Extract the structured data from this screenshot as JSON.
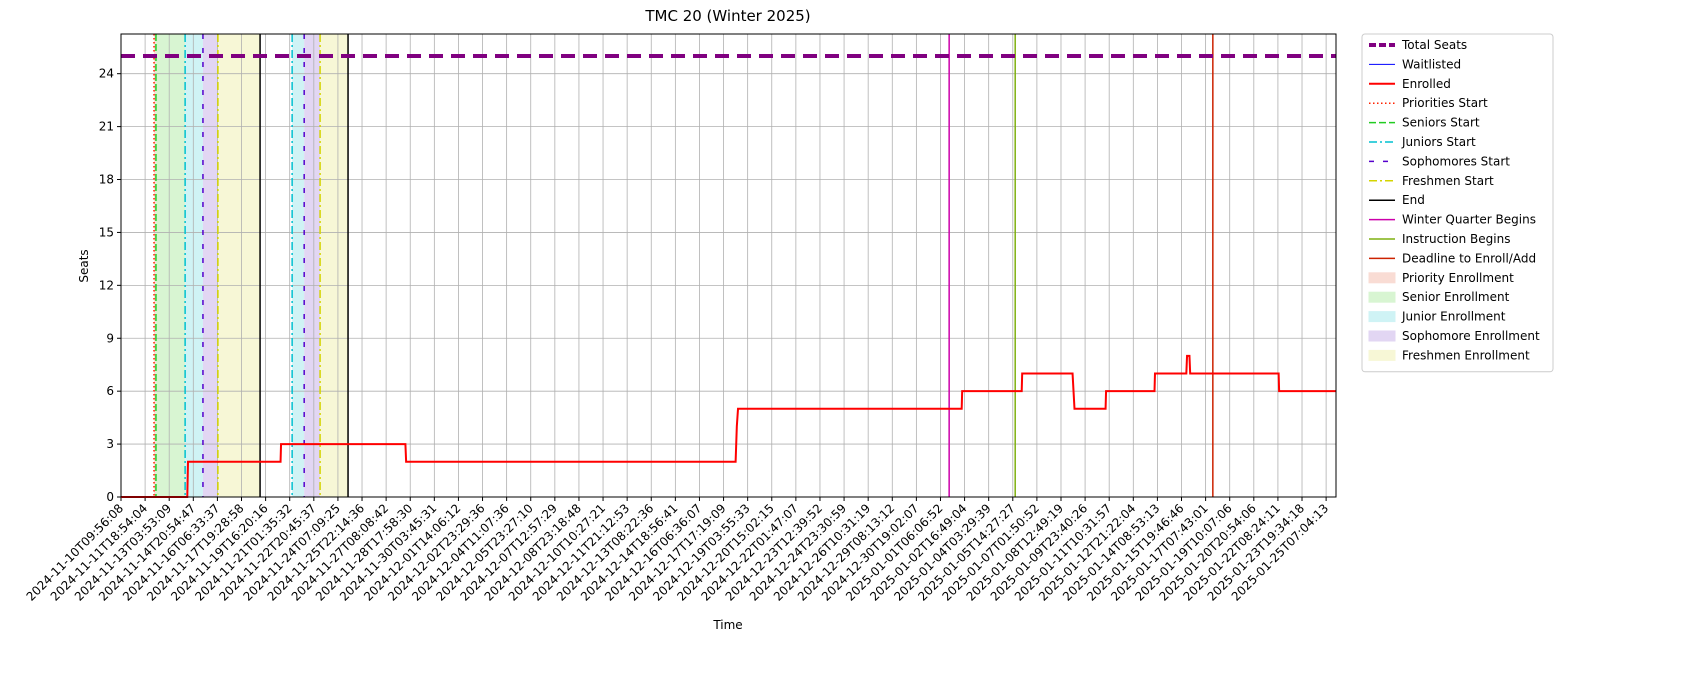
{
  "chart_data": {
    "type": "line",
    "title": "TMC 20 (Winter 2025)",
    "xlabel": "Time",
    "ylabel": "Seats",
    "grid": true,
    "legend": "outside upper right",
    "xlim": [
      0,
      50.41
    ],
    "ylim": [
      0,
      26.25
    ],
    "yticks": [
      0,
      3,
      6,
      9,
      12,
      15,
      18,
      21,
      24
    ],
    "xticks": [
      {
        "value": 0,
        "label": "2024-11-10T09:56:08"
      },
      {
        "value": 1,
        "label": "2024-11-11T18:54:04"
      },
      {
        "value": 2,
        "label": "2024-11-13T03:53:09"
      },
      {
        "value": 3,
        "label": "2024-11-14T20:54:47"
      },
      {
        "value": 4,
        "label": "2024-11-16T06:33:37"
      },
      {
        "value": 5,
        "label": "2024-11-17T19:28:58"
      },
      {
        "value": 6,
        "label": "2024-11-19T16:20:16"
      },
      {
        "value": 7,
        "label": "2024-11-21T01:35:32"
      },
      {
        "value": 8,
        "label": "2024-11-22T20:45:37"
      },
      {
        "value": 9,
        "label": "2024-11-24T07:09:25"
      },
      {
        "value": 10,
        "label": "2024-11-25T22:14:36"
      },
      {
        "value": 11,
        "label": "2024-11-27T08:08:42"
      },
      {
        "value": 12,
        "label": "2024-11-28T17:58:30"
      },
      {
        "value": 13,
        "label": "2024-11-30T03:45:31"
      },
      {
        "value": 14,
        "label": "2024-12-01T14:06:12"
      },
      {
        "value": 15,
        "label": "2024-12-02T23:29:36"
      },
      {
        "value": 16,
        "label": "2024-12-04T11:07:36"
      },
      {
        "value": 17,
        "label": "2024-12-05T23:27:10"
      },
      {
        "value": 18,
        "label": "2024-12-07T12:57:29"
      },
      {
        "value": 19,
        "label": "2024-12-08T23:18:48"
      },
      {
        "value": 20,
        "label": "2024-12-10T10:27:21"
      },
      {
        "value": 21,
        "label": "2024-12-11T21:12:53"
      },
      {
        "value": 22,
        "label": "2024-12-13T08:22:36"
      },
      {
        "value": 23,
        "label": "2024-12-14T18:56:41"
      },
      {
        "value": 24,
        "label": "2024-12-16T06:36:07"
      },
      {
        "value": 25,
        "label": "2024-12-17T17:19:09"
      },
      {
        "value": 26,
        "label": "2024-12-19T03:55:33"
      },
      {
        "value": 27,
        "label": "2024-12-20T15:02:15"
      },
      {
        "value": 28,
        "label": "2024-12-22T01:47:07"
      },
      {
        "value": 29,
        "label": "2024-12-23T12:39:52"
      },
      {
        "value": 30,
        "label": "2024-12-24T23:30:59"
      },
      {
        "value": 31,
        "label": "2024-12-26T10:31:19"
      },
      {
        "value": 32,
        "label": "2024-12-29T08:13:12"
      },
      {
        "value": 33,
        "label": "2024-12-30T19:02:07"
      },
      {
        "value": 34,
        "label": "2025-01-01T06:06:52"
      },
      {
        "value": 35,
        "label": "2025-01-02T16:49:04"
      },
      {
        "value": 36,
        "label": "2025-01-04T03:29:39"
      },
      {
        "value": 37,
        "label": "2025-01-05T14:27:27"
      },
      {
        "value": 38,
        "label": "2025-01-07T01:50:52"
      },
      {
        "value": 39,
        "label": "2025-01-08T12:49:19"
      },
      {
        "value": 40,
        "label": "2025-01-09T23:40:26"
      },
      {
        "value": 41,
        "label": "2025-01-11T10:31:57"
      },
      {
        "value": 42,
        "label": "2025-01-12T21:22:04"
      },
      {
        "value": 43,
        "label": "2025-01-14T08:53:13"
      },
      {
        "value": 44,
        "label": "2025-01-15T19:46:46"
      },
      {
        "value": 45,
        "label": "2025-01-17T07:43:01"
      },
      {
        "value": 46,
        "label": "2025-01-19T10:07:06"
      },
      {
        "value": 47,
        "label": "2025-01-20T20:54:06"
      },
      {
        "value": 48,
        "label": "2025-01-22T08:24:11"
      },
      {
        "value": 49,
        "label": "2025-01-23T19:34:18"
      },
      {
        "value": 50,
        "label": "2025-01-25T07:04:13"
      }
    ],
    "series": [
      {
        "name": "Total Seats",
        "color": "#800080",
        "style": "dashed",
        "width": 4,
        "x": [
          0,
          50.41
        ],
        "values": [
          25,
          25
        ]
      },
      {
        "name": "Waitlisted",
        "color": "#0000ff",
        "style": "solid",
        "width": 1,
        "x": [
          0,
          50.41
        ],
        "values": [
          0,
          0
        ]
      },
      {
        "name": "Enrolled",
        "color": "#ff0000",
        "style": "solid",
        "width": 2,
        "x": [
          0,
          2.75,
          2.78,
          6.62,
          6.64,
          11.8,
          11.83,
          25.5,
          25.55,
          25.6,
          34.88,
          34.9,
          37.37,
          37.39,
          39.48,
          39.52,
          39.56,
          40.85,
          40.87,
          42.88,
          42.9,
          44.2,
          44.23,
          44.33,
          44.36,
          48.03,
          48.05,
          50.41
        ],
        "values": [
          0,
          0,
          2,
          2,
          3,
          3,
          2,
          2,
          4,
          5,
          5,
          6,
          6,
          7,
          7,
          6,
          5,
          5,
          6,
          6,
          7,
          7,
          8,
          8,
          7,
          7,
          6,
          6
        ]
      }
    ],
    "vlines": [
      {
        "name": "Priorities Start",
        "color": "#ff2200",
        "style": "dotted",
        "x": [
          1.37
        ]
      },
      {
        "name": "Seniors Start",
        "color": "#22cc22",
        "style": "dashed",
        "x": [
          1.45
        ]
      },
      {
        "name": "Juniors Start",
        "color": "#00c0d0",
        "style": "dashdot",
        "x": [
          2.66,
          7.1
        ]
      },
      {
        "name": "Sophomores Start",
        "color": "#5500cc",
        "style": "loose",
        "x": [
          3.4,
          7.6
        ]
      },
      {
        "name": "Freshmen Start",
        "color": "#d4d400",
        "style": "dashdot",
        "x": [
          4.02,
          8.26
        ]
      },
      {
        "name": "End",
        "color": "#000000",
        "style": "solid",
        "x": [
          5.77,
          9.42
        ]
      },
      {
        "name": "Winter Quarter Begins",
        "color": "#cc00aa",
        "style": "solid",
        "x": [
          34.36
        ]
      },
      {
        "name": "Instruction Begins",
        "color": "#7fb010",
        "style": "solid",
        "x": [
          37.1
        ]
      },
      {
        "name": "Deadline to Enroll/Add",
        "color": "#cc2200",
        "style": "solid",
        "x": [
          45.3
        ]
      }
    ],
    "spans": [
      {
        "name": "Priority Enrollment",
        "color": "#f9dcd4",
        "ranges": [
          [
            1.37,
            1.45
          ]
        ]
      },
      {
        "name": "Senior Enrollment",
        "color": "#d8f5d2",
        "ranges": [
          [
            1.45,
            2.66
          ]
        ]
      },
      {
        "name": "Junior Enrollment",
        "color": "#cff3f5",
        "ranges": [
          [
            2.66,
            3.4
          ],
          [
            7.1,
            7.6
          ]
        ]
      },
      {
        "name": "Sophomore Enrollment",
        "color": "#e2d6f3",
        "ranges": [
          [
            3.4,
            4.02
          ],
          [
            7.6,
            8.26
          ]
        ]
      },
      {
        "name": "Freshmen Enrollment",
        "color": "#f7f7d6",
        "ranges": [
          [
            4.02,
            5.77
          ],
          [
            8.26,
            9.42
          ]
        ]
      }
    ]
  }
}
